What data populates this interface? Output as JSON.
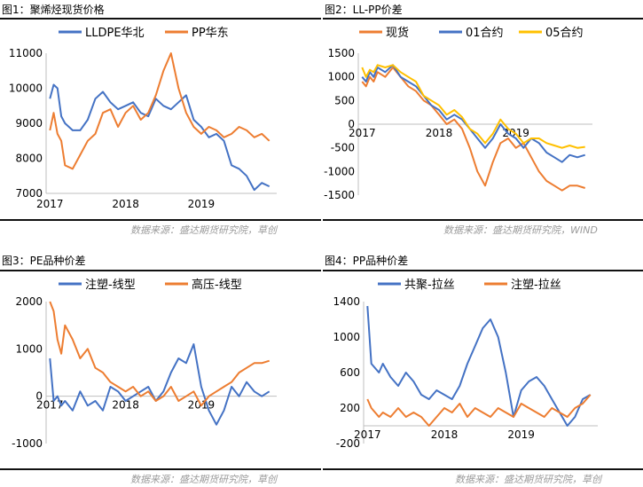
{
  "charts": [
    {
      "caption": "图1：聚烯烃现货价格",
      "source": "数据来源：盛达期货研究院，草创",
      "chart_data": {
        "type": "line",
        "x_ticks": [
          "2017",
          "2018",
          "2019"
        ],
        "ylim": [
          7000,
          11000
        ],
        "y_ticks": [
          7000,
          8000,
          9000,
          10000,
          11000
        ],
        "x_axis_at": 7000,
        "legend_position": "top",
        "series": [
          {
            "name": "LLDPE华北",
            "color": "#4472C4",
            "x": [
              2017.0,
              2017.05,
              2017.1,
              2017.15,
              2017.2,
              2017.3,
              2017.4,
              2017.5,
              2017.6,
              2017.7,
              2017.8,
              2017.9,
              2018.0,
              2018.1,
              2018.2,
              2018.3,
              2018.4,
              2018.5,
              2018.6,
              2018.7,
              2018.8,
              2018.9,
              2019.0,
              2019.1,
              2019.2,
              2019.3,
              2019.4,
              2019.5,
              2019.6,
              2019.7,
              2019.8,
              2019.9
            ],
            "y": [
              9700,
              10100,
              10000,
              9200,
              9000,
              8800,
              8800,
              9100,
              9700,
              9900,
              9600,
              9400,
              9500,
              9600,
              9300,
              9200,
              9700,
              9500,
              9400,
              9600,
              9800,
              9100,
              8900,
              8600,
              8700,
              8500,
              7800,
              7700,
              7500,
              7100,
              7300,
              7200
            ]
          },
          {
            "name": "PP华东",
            "color": "#ED7D31",
            "x": [
              2017.0,
              2017.05,
              2017.1,
              2017.15,
              2017.2,
              2017.3,
              2017.4,
              2017.5,
              2017.6,
              2017.7,
              2017.8,
              2017.9,
              2018.0,
              2018.1,
              2018.2,
              2018.3,
              2018.4,
              2018.5,
              2018.6,
              2018.7,
              2018.8,
              2018.9,
              2019.0,
              2019.1,
              2019.2,
              2019.3,
              2019.4,
              2019.5,
              2019.6,
              2019.7,
              2019.8,
              2019.9
            ],
            "y": [
              8800,
              9300,
              8700,
              8500,
              7800,
              7700,
              8100,
              8500,
              8700,
              9300,
              9400,
              8900,
              9300,
              9500,
              9100,
              9300,
              9800,
              10500,
              11000,
              10000,
              9300,
              8900,
              8700,
              8900,
              8800,
              8600,
              8700,
              8900,
              8800,
              8600,
              8700,
              8500
            ]
          }
        ]
      }
    },
    {
      "caption": "图2：LL-PP价差",
      "source": "数据来源：盛达期货研究院，WIND",
      "chart_data": {
        "type": "line",
        "x_ticks": [
          "2017",
          "2018",
          "2019"
        ],
        "ylim": [
          -1500,
          1500
        ],
        "y_ticks": [
          -1500,
          -1000,
          -500,
          0,
          500,
          1000,
          1500
        ],
        "x_axis_at": 0,
        "legend_position": "top",
        "series": [
          {
            "name": "现货",
            "color": "#ED7D31",
            "x": [
              2017.0,
              2017.05,
              2017.1,
              2017.15,
              2017.2,
              2017.3,
              2017.4,
              2017.5,
              2017.6,
              2017.7,
              2017.8,
              2017.9,
              2018.0,
              2018.1,
              2018.2,
              2018.3,
              2018.4,
              2018.5,
              2018.6,
              2018.7,
              2018.8,
              2018.9,
              2019.0,
              2019.1,
              2019.2,
              2019.3,
              2019.4,
              2019.5,
              2019.6,
              2019.7,
              2019.8,
              2019.9
            ],
            "y": [
              900,
              800,
              1000,
              900,
              1100,
              1000,
              1200,
              1000,
              800,
              700,
              500,
              400,
              200,
              0,
              100,
              -100,
              -500,
              -1000,
              -1300,
              -800,
              -400,
              -300,
              -500,
              -400,
              -700,
              -1000,
              -1200,
              -1300,
              -1400,
              -1300,
              -1300,
              -1350
            ]
          },
          {
            "name": "01合约",
            "color": "#4472C4",
            "x": [
              2017.0,
              2017.05,
              2017.1,
              2017.15,
              2017.2,
              2017.3,
              2017.4,
              2017.5,
              2017.6,
              2017.7,
              2017.8,
              2017.9,
              2018.0,
              2018.1,
              2018.2,
              2018.3,
              2018.4,
              2018.5,
              2018.6,
              2018.7,
              2018.8,
              2018.9,
              2019.0,
              2019.1,
              2019.2,
              2019.3,
              2019.4,
              2019.5,
              2019.6,
              2019.7,
              2019.8,
              2019.9
            ],
            "y": [
              1000,
              900,
              1100,
              1000,
              1200,
              1100,
              1250,
              1000,
              900,
              800,
              600,
              400,
              300,
              100,
              200,
              100,
              -100,
              -300,
              -500,
              -300,
              0,
              -200,
              -300,
              -500,
              -300,
              -400,
              -600,
              -700,
              -800,
              -650,
              -700,
              -650
            ]
          },
          {
            "name": "05合约",
            "color": "#FFC000",
            "x": [
              2017.0,
              2017.05,
              2017.1,
              2017.15,
              2017.2,
              2017.3,
              2017.4,
              2017.5,
              2017.6,
              2017.7,
              2017.8,
              2017.9,
              2018.0,
              2018.1,
              2018.2,
              2018.3,
              2018.4,
              2018.5,
              2018.6,
              2018.7,
              2018.8,
              2018.9,
              2019.0,
              2019.1,
              2019.2,
              2019.3,
              2019.4,
              2019.5,
              2019.6,
              2019.7,
              2019.8,
              2019.9
            ],
            "y": [
              1200,
              1000,
              1150,
              1100,
              1250,
              1200,
              1250,
              1100,
              1000,
              900,
              600,
              500,
              400,
              200,
              300,
              150,
              -100,
              -200,
              -400,
              -200,
              100,
              -100,
              -200,
              -400,
              -300,
              -300,
              -400,
              -450,
              -500,
              -450,
              -500,
              -480
            ]
          }
        ]
      }
    },
    {
      "caption": "图3：PE品种价差",
      "source": "数据来源：盛达期货研究院，草创",
      "chart_data": {
        "type": "line",
        "x_ticks": [
          "2017",
          "2018",
          "2019"
        ],
        "ylim": [
          -1000,
          2000
        ],
        "y_ticks": [
          -1000,
          0,
          1000,
          2000
        ],
        "x_axis_at": 0,
        "legend_position": "top",
        "series": [
          {
            "name": "注塑-线型",
            "color": "#4472C4",
            "x": [
              2017.0,
              2017.05,
              2017.1,
              2017.15,
              2017.2,
              2017.3,
              2017.4,
              2017.5,
              2017.6,
              2017.7,
              2017.8,
              2017.9,
              2018.0,
              2018.1,
              2018.2,
              2018.3,
              2018.4,
              2018.5,
              2018.6,
              2018.7,
              2018.8,
              2018.9,
              2019.0,
              2019.1,
              2019.2,
              2019.3,
              2019.4,
              2019.5,
              2019.6,
              2019.7,
              2019.8,
              2019.9
            ],
            "y": [
              800,
              -100,
              0,
              -200,
              -100,
              -300,
              100,
              -200,
              -100,
              -300,
              200,
              100,
              -100,
              0,
              100,
              200,
              -100,
              100,
              500,
              800,
              700,
              1100,
              200,
              -300,
              -600,
              -300,
              200,
              0,
              300,
              100,
              0,
              100
            ]
          },
          {
            "name": "高压-线型",
            "color": "#ED7D31",
            "x": [
              2017.0,
              2017.05,
              2017.1,
              2017.15,
              2017.2,
              2017.3,
              2017.4,
              2017.5,
              2017.6,
              2017.7,
              2017.8,
              2017.9,
              2018.0,
              2018.1,
              2018.2,
              2018.3,
              2018.4,
              2018.5,
              2018.6,
              2018.7,
              2018.8,
              2018.9,
              2019.0,
              2019.1,
              2019.2,
              2019.3,
              2019.4,
              2019.5,
              2019.6,
              2019.7,
              2019.8,
              2019.9
            ],
            "y": [
              2000,
              1800,
              1200,
              900,
              1500,
              1200,
              800,
              1000,
              600,
              500,
              300,
              200,
              100,
              200,
              0,
              100,
              -100,
              0,
              200,
              -100,
              0,
              100,
              -200,
              0,
              100,
              200,
              300,
              500,
              600,
              700,
              700,
              750
            ]
          }
        ]
      }
    },
    {
      "caption": "图4：PP品种价差",
      "source": "数据来源：盛达期货研究院，草创",
      "chart_data": {
        "type": "line",
        "x_ticks": [
          "2017",
          "2018",
          "2019"
        ],
        "ylim": [
          -200,
          1400
        ],
        "y_ticks": [
          -200,
          200,
          600,
          1000,
          1400
        ],
        "x_axis_at": 0,
        "legend_position": "top",
        "series": [
          {
            "name": "共聚-拉丝",
            "color": "#4472C4",
            "x": [
              2017.0,
              2017.05,
              2017.1,
              2017.15,
              2017.2,
              2017.3,
              2017.4,
              2017.5,
              2017.6,
              2017.7,
              2017.8,
              2017.9,
              2018.0,
              2018.1,
              2018.2,
              2018.3,
              2018.4,
              2018.5,
              2018.6,
              2018.7,
              2018.8,
              2018.9,
              2019.0,
              2019.1,
              2019.2,
              2019.3,
              2019.4,
              2019.5,
              2019.6,
              2019.7,
              2019.8,
              2019.9
            ],
            "y": [
              1350,
              700,
              650,
              600,
              700,
              550,
              450,
              600,
              500,
              350,
              300,
              400,
              350,
              300,
              450,
              700,
              900,
              1100,
              1200,
              1000,
              600,
              100,
              400,
              500,
              550,
              450,
              300,
              150,
              0,
              100,
              300,
              350
            ]
          },
          {
            "name": "注塑-拉丝",
            "color": "#ED7D31",
            "x": [
              2017.0,
              2017.05,
              2017.1,
              2017.15,
              2017.2,
              2017.3,
              2017.4,
              2017.5,
              2017.6,
              2017.7,
              2017.8,
              2017.9,
              2018.0,
              2018.1,
              2018.2,
              2018.3,
              2018.4,
              2018.5,
              2018.6,
              2018.7,
              2018.8,
              2018.9,
              2019.0,
              2019.1,
              2019.2,
              2019.3,
              2019.4,
              2019.5,
              2019.6,
              2019.7,
              2019.8,
              2019.9
            ],
            "y": [
              300,
              200,
              150,
              100,
              150,
              100,
              200,
              100,
              150,
              100,
              0,
              100,
              200,
              150,
              250,
              100,
              200,
              150,
              100,
              200,
              150,
              100,
              250,
              200,
              150,
              100,
              200,
              150,
              100,
              200,
              250,
              350
            ]
          }
        ]
      }
    }
  ]
}
